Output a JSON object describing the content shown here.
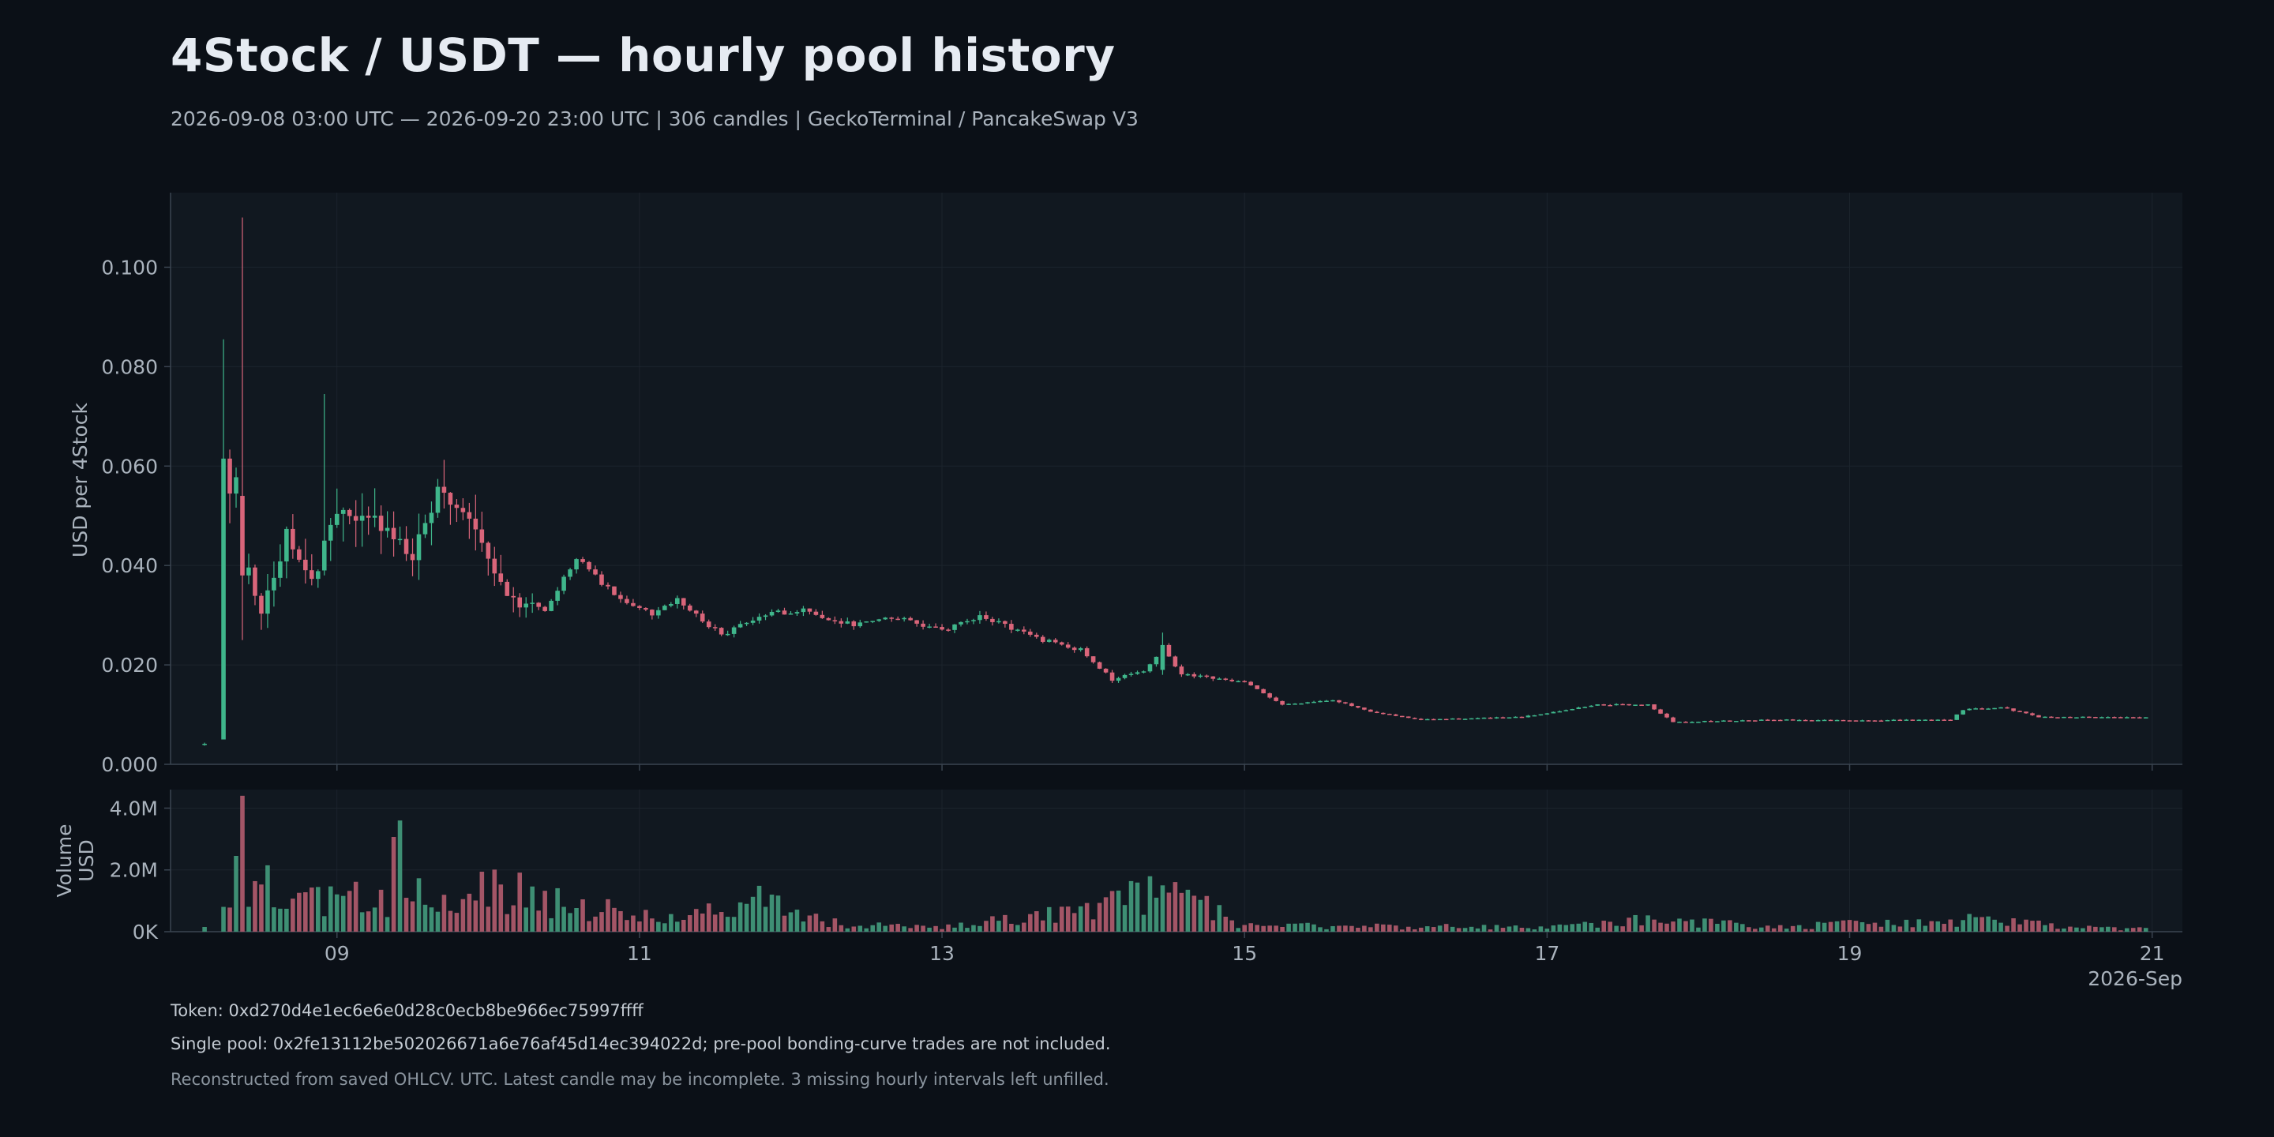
{
  "header": {
    "title": "4Stock / USDT — hourly pool history",
    "subtitle": "2026-09-08 03:00 UTC — 2026-09-20 23:00 UTC  |  306 candles  |  GeckoTerminal / PancakeSwap V3"
  },
  "footer": {
    "token": "Token: 0xd270d4e1ec6e6e0d28c0ecb8be966ec75997ffff",
    "pool": "Single pool: 0x2fe13112be502026671a6e76af45d14ec394022d; pre-pool bonding-curve trades are not included.",
    "note": "Reconstructed from saved OHLCV. UTC. Latest candle may be incomplete. 3 missing hourly intervals left unfilled."
  },
  "colors": {
    "background": "#0b1017",
    "panel": "#111820",
    "grid": "#1c242d",
    "axis": "#3a4450",
    "text": "#aab3bd",
    "up": "#3fb68b",
    "down": "#d9657a",
    "up_volume": "#3e8f74",
    "down_volume": "#a35566"
  },
  "chart_data": {
    "type": "candlestick",
    "candle_count": 306,
    "price_panel": {
      "ylabel": "USD per 4Stock",
      "ylim": [
        0,
        0.115
      ],
      "yticks": [
        0.0,
        0.02,
        0.04,
        0.06,
        0.08,
        0.1
      ],
      "ytick_labels": [
        "0.000",
        "0.020",
        "0.040",
        "0.060",
        "0.080",
        "0.100"
      ],
      "grid": true
    },
    "volume_panel": {
      "ylabel": "Volume\nUSD",
      "ylim": [
        0,
        4600000
      ],
      "yticks": [
        0,
        2000000,
        4000000
      ],
      "ytick_labels": [
        "0K",
        "2.0M",
        "4.0M"
      ],
      "grid": true
    },
    "x_axis": {
      "start": "2026-09-08T03:00",
      "end": "2026-09-20T23:00",
      "xlim_days": [
        7.9,
        21.2
      ],
      "ticks_days": [
        9,
        11,
        13,
        15,
        17,
        19,
        21
      ],
      "tick_labels": [
        "09",
        "11",
        "13",
        "15",
        "17",
        "19",
        "21"
      ],
      "offset_label": "2026-Sep"
    },
    "price_anchors": [
      [
        "2026-09-08T03:00",
        0.004
      ],
      [
        "2026-09-08T05:00",
        0.005
      ],
      [
        "2026-09-08T06:00",
        0.05
      ],
      [
        "2026-09-08T08:00",
        0.058
      ],
      [
        "2026-09-08T10:00",
        0.04
      ],
      [
        "2026-09-08T12:00",
        0.03
      ],
      [
        "2026-09-08T16:00",
        0.046
      ],
      [
        "2026-09-08T20:00",
        0.037
      ],
      [
        "2026-09-09T00:00",
        0.05
      ],
      [
        "2026-09-09T04:00",
        0.05
      ],
      [
        "2026-09-09T08:00",
        0.047
      ],
      [
        "2026-09-09T12:00",
        0.042
      ],
      [
        "2026-09-09T16:00",
        0.054
      ],
      [
        "2026-09-09T22:00",
        0.047
      ],
      [
        "2026-09-10T03:00",
        0.033
      ],
      [
        "2026-09-10T09:00",
        0.031
      ],
      [
        "2026-09-10T14:00",
        0.042
      ],
      [
        "2026-09-10T20:00",
        0.034
      ],
      [
        "2026-09-11T02:00",
        0.03
      ],
      [
        "2026-09-11T06:00",
        0.033
      ],
      [
        "2026-09-11T13:00",
        0.026
      ],
      [
        "2026-09-11T19:00",
        0.03
      ],
      [
        "2026-09-12T02:00",
        0.031
      ],
      [
        "2026-09-12T10:00",
        0.028
      ],
      [
        "2026-09-12T15:00",
        0.03
      ],
      [
        "2026-09-13T00:00",
        0.027
      ],
      [
        "2026-09-13T06:00",
        0.03
      ],
      [
        "2026-09-13T16:00",
        0.025
      ],
      [
        "2026-09-13T22:00",
        0.023
      ],
      [
        "2026-09-14T03:00",
        0.017
      ],
      [
        "2026-09-14T08:00",
        0.019
      ],
      [
        "2026-09-14T11:00",
        0.023
      ],
      [
        "2026-09-14T14:00",
        0.018
      ],
      [
        "2026-09-15T00:00",
        0.0165
      ],
      [
        "2026-09-15T06:00",
        0.012
      ],
      [
        "2026-09-15T14:00",
        0.013
      ],
      [
        "2026-09-15T20:00",
        0.0105
      ],
      [
        "2026-09-16T04:00",
        0.009
      ],
      [
        "2026-09-16T20:00",
        0.0095
      ],
      [
        "2026-09-17T08:00",
        0.012
      ],
      [
        "2026-09-17T16:00",
        0.012
      ],
      [
        "2026-09-17T20:00",
        0.0085
      ],
      [
        "2026-09-18T12:00",
        0.009
      ],
      [
        "2026-09-19T00:00",
        0.0088
      ],
      [
        "2026-09-19T16:00",
        0.009
      ],
      [
        "2026-09-19T18:00",
        0.011
      ],
      [
        "2026-09-20T00:00",
        0.0115
      ],
      [
        "2026-09-20T06:00",
        0.0095
      ],
      [
        "2026-09-20T23:00",
        0.0095
      ]
    ],
    "notable_candles": [
      {
        "time": "2026-09-08T06:00",
        "open": 0.005,
        "high": 0.0855,
        "low": 0.005,
        "close": 0.0615
      },
      {
        "time": "2026-09-08T09:00",
        "open": 0.054,
        "high": 0.11,
        "low": 0.025,
        "close": 0.038
      },
      {
        "time": "2026-09-08T22:00",
        "open": 0.039,
        "high": 0.0745,
        "low": 0.038,
        "close": 0.045
      },
      {
        "time": "2026-09-14T11:00",
        "open": 0.019,
        "high": 0.0265,
        "low": 0.018,
        "close": 0.024
      }
    ],
    "volume_anchors": [
      [
        "2026-09-08T03:00",
        200000
      ],
      [
        "2026-09-08T07:00",
        1000000
      ],
      [
        "2026-09-08T08:00",
        2000000
      ],
      [
        "2026-09-08T09:00",
        4400000
      ],
      [
        "2026-09-08T10:00",
        1400000
      ],
      [
        "2026-09-08T12:00",
        1700000
      ],
      [
        "2026-09-08T16:00",
        1000000
      ],
      [
        "2026-09-09T00:00",
        1200000
      ],
      [
        "2026-09-09T08:00",
        1000000
      ],
      [
        "2026-09-09T10:00",
        3600000
      ],
      [
        "2026-09-09T11:00",
        1900000
      ],
      [
        "2026-09-09T16:00",
        800000
      ],
      [
        "2026-09-10T00:00",
        1500000
      ],
      [
        "2026-09-10T14:00",
        1000000
      ],
      [
        "2026-09-11T00:00",
        500000
      ],
      [
        "2026-09-11T14:00",
        800000
      ],
      [
        "2026-09-11T20:00",
        1200000
      ],
      [
        "2026-09-12T08:00",
        250000
      ],
      [
        "2026-09-13T00:00",
        150000
      ],
      [
        "2026-09-14T00:00",
        800000
      ],
      [
        "2026-09-14T11:00",
        1500000
      ],
      [
        "2026-09-15T00:00",
        200000
      ],
      [
        "2026-09-16T00:00",
        200000
      ],
      [
        "2026-09-17T00:00",
        150000
      ],
      [
        "2026-09-17T19:00",
        450000
      ],
      [
        "2026-09-18T12:00",
        150000
      ],
      [
        "2026-09-19T18:00",
        450000
      ],
      [
        "2026-09-20T12:00",
        150000
      ],
      [
        "2026-09-20T23:00",
        100000
      ]
    ]
  }
}
